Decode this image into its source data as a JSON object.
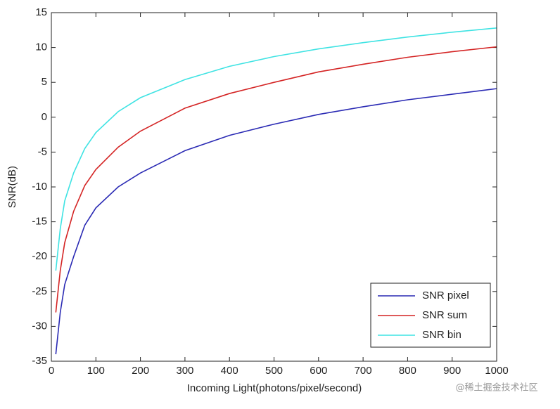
{
  "chart_data": {
    "type": "line",
    "xlabel": "Incoming Light(photons/pixel/second)",
    "ylabel": "SNR(dB)",
    "x": [
      10,
      20,
      30,
      50,
      75,
      100,
      150,
      200,
      300,
      400,
      500,
      600,
      700,
      800,
      900,
      1000
    ],
    "series": [
      {
        "name": "SNR pixel",
        "color": "#2a2ab4",
        "values": [
          -34,
          -28,
          -24,
          -20,
          -15.5,
          -13,
          -10,
          -8,
          -4.8,
          -2.6,
          -1,
          0.4,
          1.5,
          2.5,
          3.3,
          4.1
        ]
      },
      {
        "name": "SNR sum",
        "color": "#d42424",
        "values": [
          -28,
          -22,
          -18,
          -13.5,
          -9.8,
          -7.5,
          -4.3,
          -2,
          1.3,
          3.4,
          5,
          6.5,
          7.6,
          8.6,
          9.4,
          10.1
        ]
      },
      {
        "name": "SNR bin",
        "color": "#3fe3e3",
        "values": [
          -22,
          -16,
          -12,
          -8,
          -4.5,
          -2.2,
          0.8,
          2.8,
          5.4,
          7.3,
          8.7,
          9.8,
          10.7,
          11.5,
          12.2,
          12.8
        ]
      }
    ],
    "xlim": [
      0,
      1000
    ],
    "xticks": [
      0,
      100,
      200,
      300,
      400,
      500,
      600,
      700,
      800,
      900,
      1000
    ],
    "ylim": [
      -35,
      15
    ],
    "yticks": [
      -35,
      -30,
      -25,
      -20,
      -15,
      -10,
      -5,
      0,
      5,
      10,
      15
    ],
    "legend": "lower right"
  },
  "watermark": "@稀土掘金技术社区"
}
